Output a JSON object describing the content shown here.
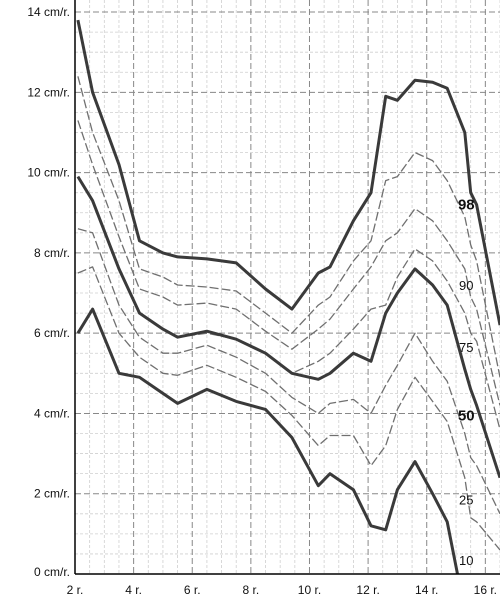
{
  "chart_data": {
    "type": "line",
    "title": "",
    "xlabel": "",
    "ylabel": "",
    "xlim": [
      2,
      16.5
    ],
    "ylim": [
      0,
      14.3
    ],
    "grid": true,
    "x_ticks": [
      {
        "value": 2,
        "label": "2 r."
      },
      {
        "value": 4,
        "label": "4 r."
      },
      {
        "value": 6,
        "label": "6 r."
      },
      {
        "value": 8,
        "label": "8 r."
      },
      {
        "value": 10,
        "label": "10 r."
      },
      {
        "value": 12,
        "label": "12 r."
      },
      {
        "value": 14,
        "label": "14 r."
      },
      {
        "value": 16,
        "label": "16 r."
      }
    ],
    "y_ticks": [
      {
        "value": 0,
        "label": "0 cm/r."
      },
      {
        "value": 2,
        "label": "2 cm/r."
      },
      {
        "value": 4,
        "label": "4 cm/r."
      },
      {
        "value": 6,
        "label": "6 cm/r."
      },
      {
        "value": 8,
        "label": "8 cm/r."
      },
      {
        "value": 10,
        "label": "10 cm/r."
      },
      {
        "value": 12,
        "label": "12 cm/r."
      },
      {
        "value": 14,
        "label": "14 cm/r."
      }
    ],
    "series": [
      {
        "name": "98",
        "style": "bold",
        "label_at": [
          15.35,
          9.2
        ],
        "points": [
          [
            2.1,
            13.8
          ],
          [
            2.6,
            12.0
          ],
          [
            3.5,
            10.2
          ],
          [
            4.2,
            8.3
          ],
          [
            5.0,
            8.0
          ],
          [
            5.5,
            7.9
          ],
          [
            6.5,
            7.85
          ],
          [
            7.5,
            7.75
          ],
          [
            8.5,
            7.1
          ],
          [
            9.4,
            6.6
          ],
          [
            10.3,
            7.5
          ],
          [
            10.7,
            7.65
          ],
          [
            11.5,
            8.8
          ],
          [
            12.1,
            9.5
          ],
          [
            12.6,
            11.9
          ],
          [
            13.0,
            11.8
          ],
          [
            13.6,
            12.3
          ],
          [
            14.2,
            12.25
          ],
          [
            14.7,
            12.1
          ],
          [
            15.3,
            11.0
          ],
          [
            15.5,
            9.5
          ],
          [
            15.7,
            9.2
          ],
          [
            16.5,
            6.2
          ]
        ]
      },
      {
        "name": "90",
        "style": "dash",
        "label_at": [
          15.35,
          7.2
        ],
        "points": [
          [
            2.1,
            12.4
          ],
          [
            2.6,
            11.0
          ],
          [
            3.5,
            9.3
          ],
          [
            4.2,
            7.6
          ],
          [
            5.0,
            7.4
          ],
          [
            5.5,
            7.2
          ],
          [
            6.5,
            7.15
          ],
          [
            7.5,
            7.05
          ],
          [
            8.5,
            6.5
          ],
          [
            9.4,
            6.0
          ],
          [
            10.3,
            6.7
          ],
          [
            10.7,
            6.9
          ],
          [
            11.5,
            7.8
          ],
          [
            12.1,
            8.3
          ],
          [
            12.6,
            9.8
          ],
          [
            13.0,
            9.9
          ],
          [
            13.6,
            10.5
          ],
          [
            14.2,
            10.3
          ],
          [
            14.7,
            9.8
          ],
          [
            15.3,
            8.9
          ],
          [
            15.5,
            8.2
          ],
          [
            15.7,
            7.8
          ],
          [
            16.5,
            4.9
          ]
        ]
      },
      {
        "name": "",
        "style": "dash",
        "label_at": null,
        "points": [
          [
            2.1,
            11.3
          ],
          [
            2.6,
            10.2
          ],
          [
            3.5,
            8.4
          ],
          [
            4.2,
            7.1
          ],
          [
            5.0,
            6.9
          ],
          [
            5.5,
            6.7
          ],
          [
            6.5,
            6.75
          ],
          [
            7.5,
            6.6
          ],
          [
            8.5,
            6.05
          ],
          [
            9.4,
            5.6
          ],
          [
            10.3,
            6.1
          ],
          [
            10.7,
            6.35
          ],
          [
            11.5,
            7.1
          ],
          [
            12.1,
            7.65
          ],
          [
            12.6,
            8.3
          ],
          [
            13.0,
            8.5
          ],
          [
            13.6,
            9.1
          ],
          [
            14.2,
            8.8
          ],
          [
            14.7,
            8.3
          ],
          [
            15.3,
            7.6
          ],
          [
            15.5,
            6.9
          ],
          [
            15.7,
            6.6
          ],
          [
            16.5,
            4.2
          ]
        ]
      },
      {
        "name": "75",
        "style": "dash",
        "label_at": [
          15.35,
          5.65
        ],
        "points": [
          [
            2.1,
            9.9
          ],
          [
            2.6,
            9.3
          ],
          [
            3.5,
            7.6
          ],
          [
            4.2,
            6.5
          ],
          [
            5.0,
            6.1
          ],
          [
            5.5,
            5.9
          ],
          [
            6.5,
            6.0
          ],
          [
            7.5,
            5.85
          ],
          [
            8.5,
            5.5
          ],
          [
            9.4,
            5.0
          ],
          [
            10.3,
            5.3
          ],
          [
            10.7,
            5.5
          ],
          [
            11.5,
            6.1
          ],
          [
            12.1,
            6.6
          ],
          [
            12.6,
            6.7
          ],
          [
            13.0,
            7.4
          ],
          [
            13.6,
            8.1
          ],
          [
            14.2,
            7.8
          ],
          [
            14.7,
            7.3
          ],
          [
            15.3,
            6.5
          ],
          [
            15.5,
            6.0
          ],
          [
            15.7,
            5.8
          ],
          [
            16.5,
            3.6
          ]
        ]
      },
      {
        "name": "50",
        "style": "bold",
        "label_at": [
          15.35,
          3.95
        ],
        "points": [
          [
            2.1,
            9.9
          ],
          [
            2.6,
            9.3
          ],
          [
            3.5,
            7.6
          ],
          [
            4.2,
            6.5
          ],
          [
            5.0,
            6.1
          ],
          [
            5.5,
            5.9
          ],
          [
            6.5,
            6.05
          ],
          [
            7.5,
            5.85
          ],
          [
            8.5,
            5.5
          ],
          [
            9.4,
            5.0
          ],
          [
            10.3,
            4.85
          ],
          [
            10.7,
            5.0
          ],
          [
            11.5,
            5.5
          ],
          [
            12.1,
            5.3
          ],
          [
            12.6,
            6.5
          ],
          [
            13.0,
            7.0
          ],
          [
            13.6,
            7.6
          ],
          [
            14.2,
            7.2
          ],
          [
            14.7,
            6.7
          ],
          [
            15.3,
            5.1
          ],
          [
            15.5,
            4.6
          ],
          [
            15.7,
            4.2
          ],
          [
            16.5,
            2.4
          ]
        ]
      },
      {
        "name": "",
        "style": "dash",
        "label_at": null,
        "points": [
          [
            2.1,
            8.6
          ],
          [
            2.6,
            8.5
          ],
          [
            3.5,
            6.7
          ],
          [
            4.2,
            5.9
          ],
          [
            5.0,
            5.5
          ],
          [
            5.5,
            5.5
          ],
          [
            6.5,
            5.7
          ],
          [
            7.5,
            5.4
          ],
          [
            8.5,
            5.0
          ],
          [
            9.4,
            4.4
          ],
          [
            10.3,
            4.0
          ],
          [
            10.7,
            4.25
          ],
          [
            11.5,
            4.35
          ],
          [
            12.1,
            4.0
          ],
          [
            12.6,
            4.7
          ],
          [
            13.0,
            5.2
          ],
          [
            13.6,
            6.0
          ],
          [
            14.2,
            5.3
          ],
          [
            14.7,
            4.8
          ],
          [
            15.3,
            3.5
          ],
          [
            15.5,
            2.9
          ],
          [
            15.7,
            2.7
          ],
          [
            16.5,
            1.5
          ]
        ]
      },
      {
        "name": "25",
        "style": "dash",
        "label_at": [
          15.35,
          1.85
        ],
        "points": [
          [
            2.1,
            7.5
          ],
          [
            2.6,
            7.65
          ],
          [
            3.5,
            6.0
          ],
          [
            4.2,
            5.4
          ],
          [
            5.0,
            5.0
          ],
          [
            5.5,
            4.95
          ],
          [
            6.5,
            5.2
          ],
          [
            7.5,
            4.9
          ],
          [
            8.5,
            4.55
          ],
          [
            9.4,
            3.95
          ],
          [
            10.3,
            3.2
          ],
          [
            10.7,
            3.45
          ],
          [
            11.5,
            3.45
          ],
          [
            12.1,
            2.7
          ],
          [
            12.6,
            3.2
          ],
          [
            13.0,
            4.1
          ],
          [
            13.6,
            4.9
          ],
          [
            14.2,
            4.3
          ],
          [
            14.7,
            3.8
          ],
          [
            15.3,
            2.4
          ],
          [
            15.5,
            1.4
          ],
          [
            15.7,
            1.3
          ],
          [
            16.5,
            0.6
          ]
        ]
      },
      {
        "name": "10",
        "style": "bold",
        "label_at": [
          15.35,
          0.35
        ],
        "points": [
          [
            2.1,
            6.0
          ],
          [
            2.6,
            6.6
          ],
          [
            3.5,
            5.0
          ],
          [
            4.2,
            4.9
          ],
          [
            5.0,
            4.5
          ],
          [
            5.5,
            4.25
          ],
          [
            6.5,
            4.6
          ],
          [
            7.5,
            4.3
          ],
          [
            8.5,
            4.1
          ],
          [
            9.4,
            3.4
          ],
          [
            10.3,
            2.2
          ],
          [
            10.7,
            2.5
          ],
          [
            11.5,
            2.1
          ],
          [
            12.1,
            1.2
          ],
          [
            12.6,
            1.1
          ],
          [
            13.0,
            2.1
          ],
          [
            13.6,
            2.8
          ],
          [
            14.2,
            2.0
          ],
          [
            14.7,
            1.3
          ],
          [
            15.05,
            0.0
          ]
        ]
      }
    ]
  }
}
